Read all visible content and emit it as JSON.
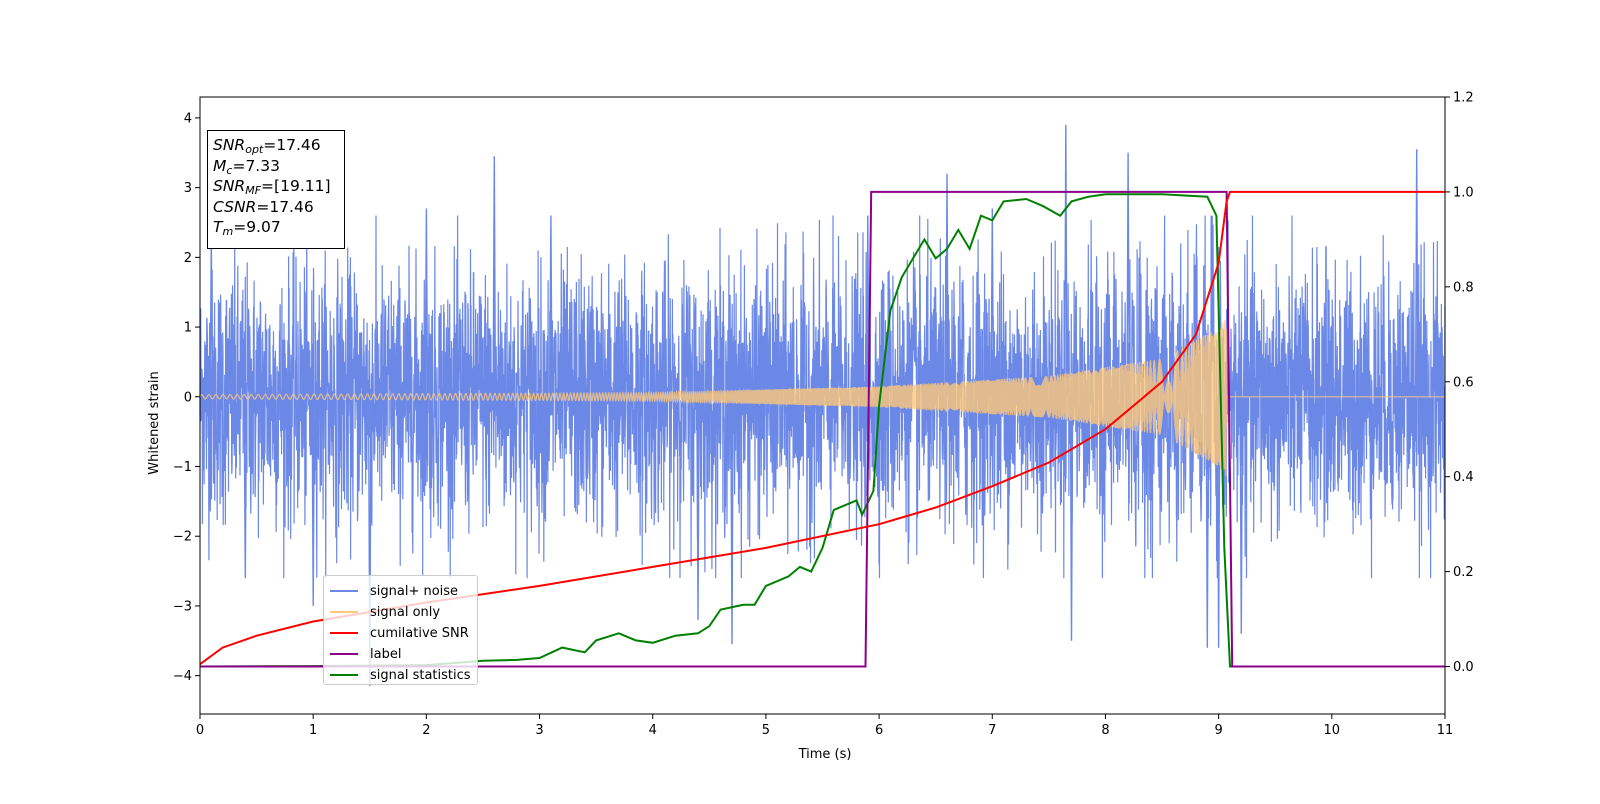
{
  "chart_data": {
    "type": "line",
    "xlabel": "Time (s)",
    "ylabel": "Whitened strain",
    "xlim": [
      0,
      11
    ],
    "ylim": [
      -4.55,
      4.3
    ],
    "y2lim": [
      -0.1,
      1.2
    ],
    "x_ticks": [
      0,
      1,
      2,
      3,
      4,
      5,
      6,
      7,
      8,
      9,
      10,
      11
    ],
    "y_ticks": [
      -4,
      -3,
      -2,
      -1,
      0,
      1,
      2,
      3,
      4
    ],
    "y2_ticks": [
      "0.0",
      "0.2",
      "0.4",
      "0.6",
      "0.8",
      "1.0",
      "1.2"
    ],
    "legend_position": "lower-left",
    "annotation": {
      "snr_opt": "17.46",
      "mc": "7.33",
      "snr_mf": "[19.11]",
      "csnr": "17.46",
      "tm": "9.07"
    },
    "series": [
      {
        "name": "signal+ noise",
        "color": "#6b88e6",
        "axis": "left",
        "style": "noise",
        "sigma": 0.9,
        "envelope": [
          [
            0,
            0.03
          ],
          [
            4,
            0.06
          ],
          [
            6,
            0.15
          ],
          [
            7.5,
            0.3
          ],
          [
            8.5,
            0.55
          ],
          [
            9.0,
            1.0
          ],
          [
            9.07,
            1.15
          ]
        ],
        "spike_peaks": [
          [
            0.1,
            2.3
          ],
          [
            0.4,
            -2.6
          ],
          [
            1.0,
            -3.0
          ],
          [
            1.5,
            -4.15
          ],
          [
            2.0,
            2.7
          ],
          [
            2.6,
            3.45
          ],
          [
            3.1,
            2.6
          ],
          [
            4.4,
            -3.2
          ],
          [
            4.7,
            -3.55
          ],
          [
            5.9,
            2.6
          ],
          [
            6.6,
            3.2
          ],
          [
            7.0,
            2.7
          ],
          [
            7.65,
            3.9
          ],
          [
            7.7,
            -3.5
          ],
          [
            8.2,
            3.5
          ],
          [
            8.9,
            -3.6
          ],
          [
            9.0,
            -3.6
          ],
          [
            9.2,
            -3.4
          ],
          [
            10.75,
            3.55
          ]
        ]
      },
      {
        "name": "signal only",
        "color": "#ffc87a",
        "axis": "left",
        "style": "chirp",
        "tm": 9.07,
        "envelope": [
          [
            0,
            0.03
          ],
          [
            4,
            0.06
          ],
          [
            6,
            0.15
          ],
          [
            7.5,
            0.3
          ],
          [
            8.5,
            0.55
          ],
          [
            9.0,
            1.0
          ],
          [
            9.07,
            1.15
          ]
        ]
      },
      {
        "name": "cumilative SNR",
        "color": "#ff0000",
        "axis": "right",
        "points": [
          [
            0,
            0.005
          ],
          [
            0.2,
            0.04
          ],
          [
            0.5,
            0.065
          ],
          [
            1,
            0.095
          ],
          [
            2,
            0.135
          ],
          [
            3,
            0.17
          ],
          [
            4,
            0.21
          ],
          [
            5,
            0.25
          ],
          [
            6,
            0.3
          ],
          [
            6.5,
            0.335
          ],
          [
            7,
            0.38
          ],
          [
            7.5,
            0.43
          ],
          [
            8,
            0.5
          ],
          [
            8.5,
            0.6
          ],
          [
            8.8,
            0.7
          ],
          [
            9.0,
            0.85
          ],
          [
            9.07,
            0.98
          ],
          [
            9.1,
            1.0
          ],
          [
            11,
            1.0
          ]
        ]
      },
      {
        "name": "label",
        "color": "#8b008b",
        "axis": "right",
        "points": [
          [
            0,
            0
          ],
          [
            5.88,
            0
          ],
          [
            5.93,
            1.0
          ],
          [
            9.07,
            1.0
          ],
          [
            9.12,
            0
          ],
          [
            11,
            0
          ]
        ]
      },
      {
        "name": "signal statistics",
        "color": "#008000",
        "axis": "right",
        "points": [
          [
            0,
            0.0
          ],
          [
            1,
            0.001
          ],
          [
            2,
            0.003
          ],
          [
            2.5,
            0.012
          ],
          [
            2.8,
            0.014
          ],
          [
            3.0,
            0.018
          ],
          [
            3.2,
            0.04
          ],
          [
            3.4,
            0.03
          ],
          [
            3.5,
            0.055
          ],
          [
            3.7,
            0.07
          ],
          [
            3.85,
            0.055
          ],
          [
            4.0,
            0.05
          ],
          [
            4.2,
            0.065
          ],
          [
            4.4,
            0.07
          ],
          [
            4.5,
            0.085
          ],
          [
            4.6,
            0.12
          ],
          [
            4.8,
            0.13
          ],
          [
            4.9,
            0.13
          ],
          [
            5.0,
            0.17
          ],
          [
            5.2,
            0.19
          ],
          [
            5.3,
            0.21
          ],
          [
            5.4,
            0.2
          ],
          [
            5.5,
            0.25
          ],
          [
            5.6,
            0.33
          ],
          [
            5.7,
            0.34
          ],
          [
            5.8,
            0.35
          ],
          [
            5.85,
            0.32
          ],
          [
            5.95,
            0.37
          ],
          [
            6.0,
            0.55
          ],
          [
            6.1,
            0.75
          ],
          [
            6.2,
            0.82
          ],
          [
            6.3,
            0.86
          ],
          [
            6.4,
            0.9
          ],
          [
            6.5,
            0.86
          ],
          [
            6.6,
            0.88
          ],
          [
            6.7,
            0.92
          ],
          [
            6.8,
            0.88
          ],
          [
            6.9,
            0.95
          ],
          [
            7.0,
            0.94
          ],
          [
            7.1,
            0.98
          ],
          [
            7.3,
            0.985
          ],
          [
            7.45,
            0.97
          ],
          [
            7.6,
            0.95
          ],
          [
            7.7,
            0.98
          ],
          [
            7.85,
            0.99
          ],
          [
            8.0,
            0.995
          ],
          [
            8.5,
            0.995
          ],
          [
            8.9,
            0.99
          ],
          [
            8.98,
            0.95
          ],
          [
            9.05,
            0.25
          ],
          [
            9.1,
            0.0
          ],
          [
            11,
            0.0
          ]
        ]
      }
    ]
  }
}
